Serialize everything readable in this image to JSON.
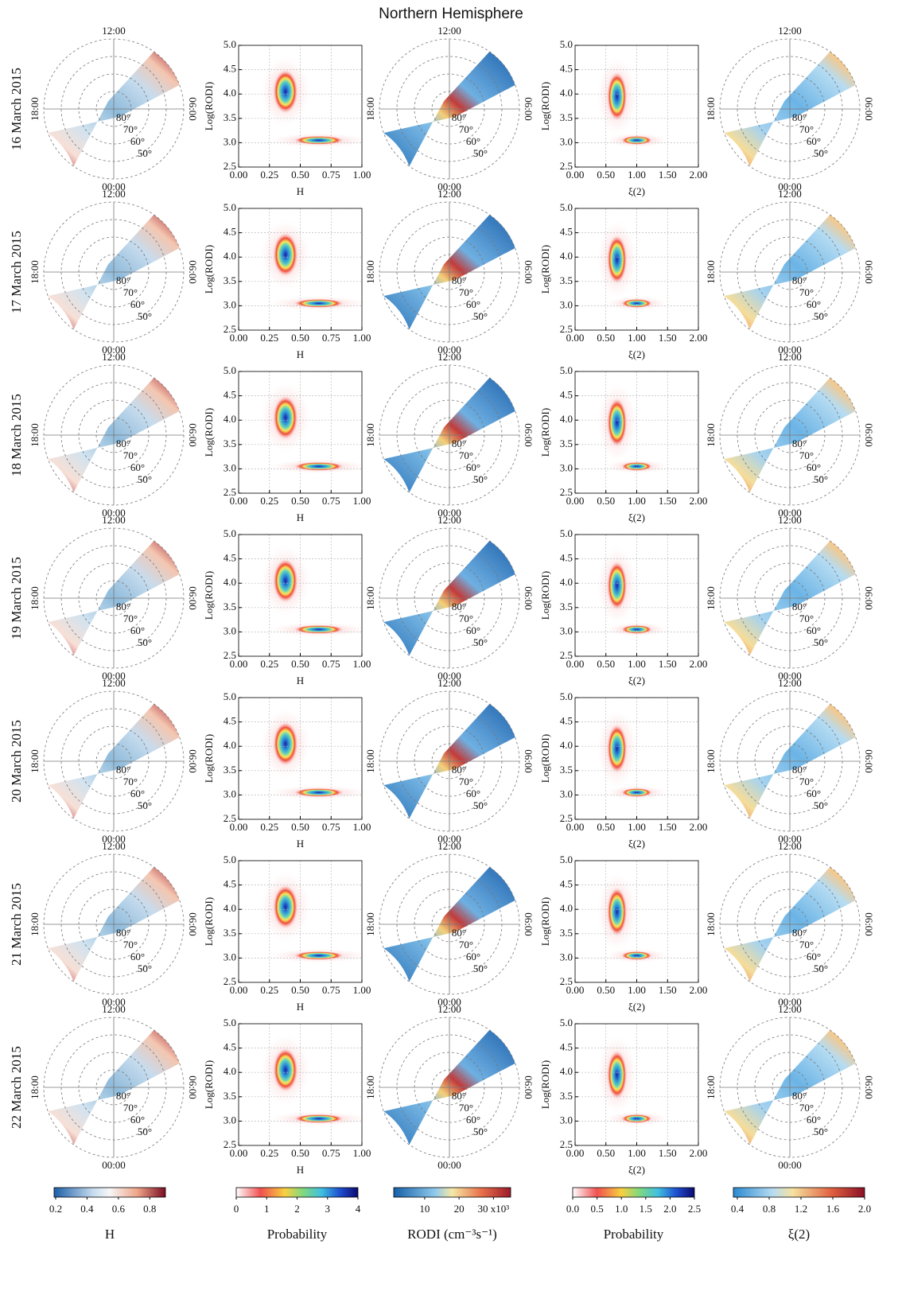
{
  "title": "Northern Hemisphere",
  "rows": [
    "16 March 2015",
    "17 March 2015",
    "18 March 2015",
    "19 March 2015",
    "20 March 2015",
    "21 March 2015",
    "22 March 2015"
  ],
  "polar": {
    "time_labels": [
      "12:00",
      "18:00",
      "06:00",
      "00:00"
    ],
    "lat_labels": [
      "80°",
      "70°",
      "60°",
      "50°"
    ]
  },
  "hist_h": {
    "type": "heatmap",
    "xlabel": "H",
    "ylabel": "Log(RODI)",
    "xlim": [
      0,
      1
    ],
    "xticks": [
      {
        "value": 0,
        "label": "0.00"
      },
      0.25,
      {
        "value": 0.5,
        "label": "0.50"
      },
      0.75,
      {
        "value": 1,
        "label": "1.00"
      }
    ],
    "ylim": [
      2.5,
      5
    ],
    "yticks": [
      2.5,
      {
        "value": 3,
        "label": "3.0"
      },
      3.5,
      {
        "value": 4,
        "label": "4.0"
      },
      4.5,
      {
        "value": 5,
        "label": "5.0"
      }
    ],
    "grid": true
  },
  "hist_xi": {
    "type": "heatmap",
    "xlabel": "ξ(2)",
    "ylabel": "Log(RODI)",
    "xlim": [
      0,
      2
    ],
    "xticks": [
      {
        "value": 0,
        "label": "0.00"
      },
      {
        "value": 0.5,
        "label": "0.50"
      },
      {
        "value": 1,
        "label": "1.00"
      },
      {
        "value": 1.5,
        "label": "1.50"
      },
      {
        "value": 2,
        "label": "2.00"
      }
    ],
    "ylim": [
      2.5,
      5
    ],
    "yticks": [
      2.5,
      {
        "value": 3,
        "label": "3.0"
      },
      3.5,
      {
        "value": 4,
        "label": "4.0"
      },
      4.5,
      {
        "value": 5,
        "label": "5.0"
      }
    ],
    "grid": true
  },
  "colorbars": [
    {
      "label": "H",
      "lim": [
        0.19,
        0.9
      ],
      "ticks": [
        0.2,
        0.4,
        0.6,
        0.8
      ]
    },
    {
      "label": "Probability",
      "lim": [
        0,
        4
      ],
      "ticks": [
        0,
        1,
        2,
        3,
        4
      ]
    },
    {
      "label": "RODI (cm⁻³s⁻¹)",
      "lim": [
        1,
        35
      ],
      "ticks": [
        10,
        20,
        {
          "value": 30,
          "label": "30 x10³"
        }
      ]
    },
    {
      "label": "Probability",
      "lim": [
        0,
        2.5
      ],
      "ticks": [
        {
          "value": 0,
          "label": "0.0"
        },
        0.5,
        {
          "value": 1,
          "label": "1.0"
        },
        1.5,
        {
          "value": 2,
          "label": "2.0"
        },
        2.5
      ]
    },
    {
      "label": "ξ(2)",
      "lim": [
        0.35,
        2
      ],
      "ticks": [
        0.4,
        0.8,
        1.2,
        1.6,
        {
          "value": 2,
          "label": "2.0"
        }
      ]
    }
  ]
}
